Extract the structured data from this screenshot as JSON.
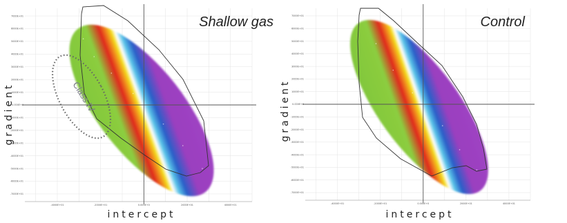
{
  "figure": {
    "xlabel": "intercept",
    "ylabel": "gradient"
  },
  "colors": {
    "purple": "#9a3fbf",
    "blue": "#2a5fc8",
    "cyan": "#59c4e8",
    "white": "#ffffff",
    "yellow": "#f3df20",
    "orange": "#f08a1c",
    "red": "#e0281e",
    "green": "#7fc63a",
    "outline": "#333333",
    "axis": "#555555"
  },
  "chart_data": [
    {
      "type": "scatter",
      "title": "Shallow gas",
      "xlabel": "intercept",
      "ylabel": "gradient",
      "x_ticks": [
        "-4000E+01",
        "-2000E+01",
        "0.000E+0",
        "2000E+01",
        "4000E+01"
      ],
      "y_ticks": [
        "7000E+01",
        "6000E+01",
        "5000E+01",
        "4000E+01",
        "3000E+01",
        "2000E+01",
        "1000E+01",
        "0.000E+0",
        "-1000E+01",
        "-2000E+01",
        "-3000E+01",
        "-4000E+01",
        "-5000E+01",
        "-6000E+01",
        "-7000E+01"
      ],
      "xlim": [
        -5500,
        5000
      ],
      "ylim": [
        -7600,
        7600
      ],
      "grid": true,
      "color_scale": [
        "purple",
        "blue",
        "cyan",
        "white",
        "yellow",
        "orange",
        "red",
        "green"
      ],
      "annotation": "Class IV",
      "series": [
        {
          "values": [
            {
              "x": -2800,
              "y": 5200
            },
            {
              "x": -2300,
              "y": 3800
            },
            {
              "x": -1500,
              "y": 2500
            },
            {
              "x": -500,
              "y": 900
            },
            {
              "x": 0,
              "y": 0
            },
            {
              "x": 900,
              "y": -1500
            },
            {
              "x": 1800,
              "y": -3200
            },
            {
              "x": 2700,
              "y": -5000
            }
          ]
        }
      ]
    },
    {
      "type": "scatter",
      "title": "Control",
      "xlabel": "intercept",
      "ylabel": "gradient",
      "x_ticks": [
        "-4000E+01",
        "-2000E+01",
        "0.000E+0",
        "2000E+01",
        "4000E+01"
      ],
      "y_ticks": [
        "7000E+01",
        "6000E+01",
        "5000E+01",
        "4000E+01",
        "3000E+01",
        "2000E+01",
        "1000E+01",
        "0.000E+0",
        "-1000E+01",
        "-2000E+01",
        "-3000E+01",
        "-4000E+01",
        "-5000E+01",
        "-6000E+01",
        "-7000E+01"
      ],
      "xlim": [
        -5500,
        5000
      ],
      "ylim": [
        -7600,
        7600
      ],
      "grid": true,
      "color_scale": [
        "purple",
        "blue",
        "cyan",
        "white",
        "yellow",
        "orange",
        "red",
        "green"
      ],
      "series": [
        {
          "values": [
            {
              "x": -2800,
              "y": 7000
            },
            {
              "x": -2200,
              "y": 4800
            },
            {
              "x": -1400,
              "y": 2700
            },
            {
              "x": -500,
              "y": 900
            },
            {
              "x": 0,
              "y": 0
            },
            {
              "x": 900,
              "y": -1700
            },
            {
              "x": 1700,
              "y": -3600
            },
            {
              "x": 2500,
              "y": -5200
            }
          ]
        }
      ]
    }
  ]
}
